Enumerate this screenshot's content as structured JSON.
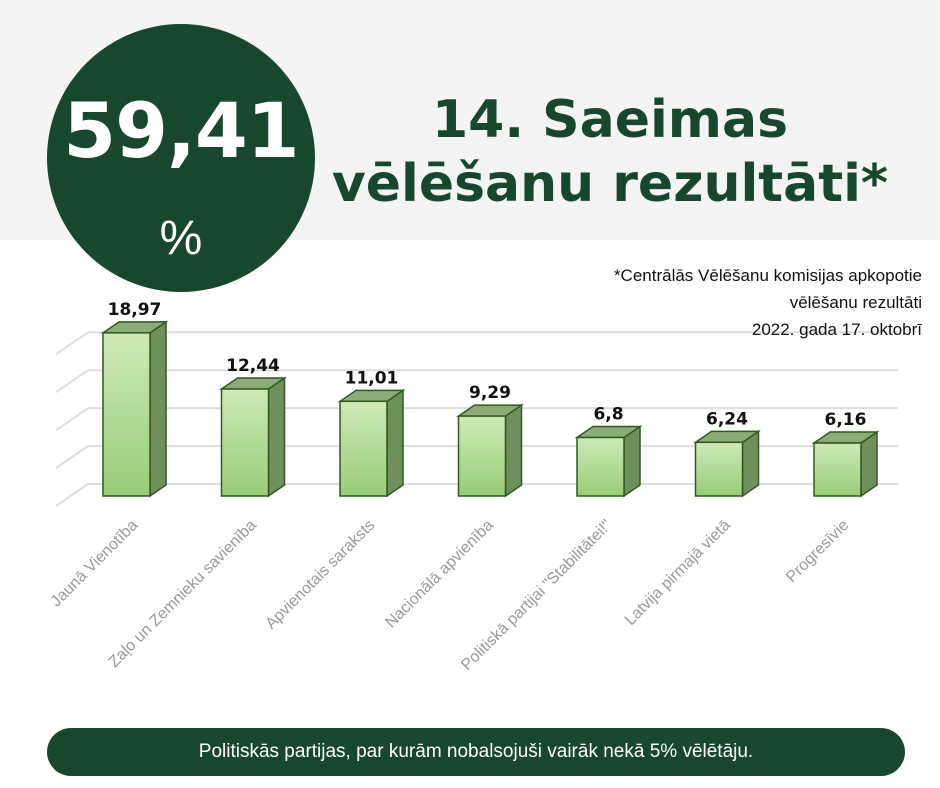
{
  "turnout": {
    "value": "59,41",
    "unit": "%"
  },
  "title": {
    "line1": "14. Saeimas",
    "line2": "vēlēšanu rezultāti*"
  },
  "note": {
    "line1": "*Centrālās Vēlēšanu komisijas apkopotie",
    "line2": "vēlēšanu rezultāti",
    "line3": "2022. gada 17. oktobrī"
  },
  "footer": {
    "text": "Politiskās partijas, par kurām nobalsojuši vairāk nekā 5% vēlētāju."
  },
  "colors": {
    "dark_green": "#17472d",
    "bar_front_top": "#cfe9b8",
    "bar_front_bottom": "#98cc78",
    "bar_side": "#6f8f5c",
    "bar_top": "#8cab79",
    "bar_outline": "#2f5a1e"
  },
  "chart_data": {
    "type": "bar",
    "title": "",
    "xlabel": "",
    "ylabel": "",
    "grid": true,
    "ylim": [
      0,
      20
    ],
    "categories": [
      "Jaunā Vienotība",
      "Zaļo un Zemnieku savienība",
      "Apvienotais saraksts",
      "Nacionālā apvienība",
      "Politiskā partijai \"Stabilitātei!\"",
      "Latvija pirmajā vietā",
      "Progresīvie"
    ],
    "values": [
      18.97,
      12.44,
      11.01,
      9.29,
      6.8,
      6.24,
      6.16
    ],
    "value_labels": [
      "18,97",
      "12,44",
      "11,01",
      "9,29",
      "6,8",
      "6,24",
      "6,16"
    ]
  }
}
